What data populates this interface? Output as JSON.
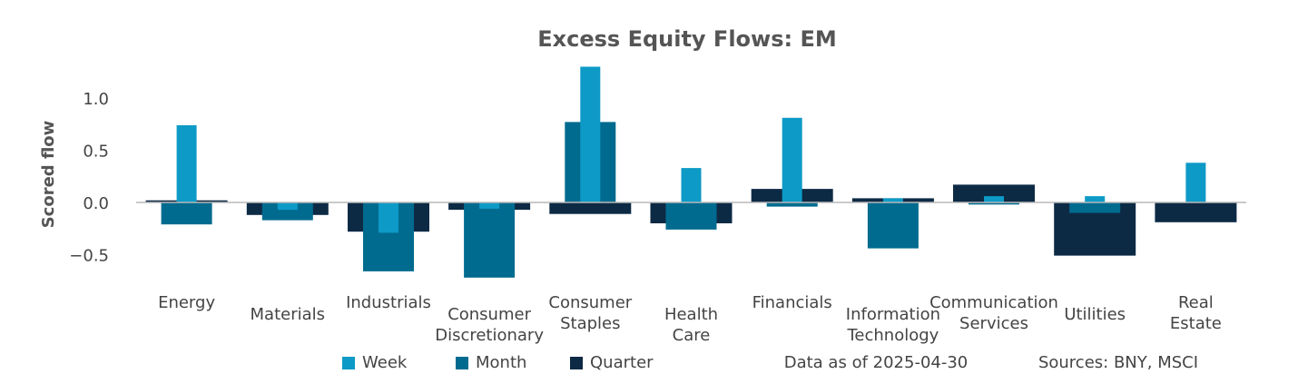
{
  "chart_data": {
    "type": "bar",
    "title": "Excess Equity Flows:  EM",
    "xlabel": "",
    "ylabel": "Scored flow",
    "ylim": [
      -0.75,
      1.4
    ],
    "yticks": [
      1.0,
      0.5,
      0.0,
      -0.5
    ],
    "ytick_labels": [
      "1.0",
      "0.5",
      "0.0",
      "−0.5"
    ],
    "categories": [
      [
        "Energy"
      ],
      [
        "Materials"
      ],
      [
        "Industrials"
      ],
      [
        "Consumer",
        "Discretionary"
      ],
      [
        "Consumer",
        "Staples"
      ],
      [
        "Health",
        "Care"
      ],
      [
        "Financials"
      ],
      [
        "Information",
        "Technology"
      ],
      [
        "Communication",
        "Services"
      ],
      [
        "Utilities"
      ],
      [
        "Real",
        "Estate"
      ]
    ],
    "series": [
      {
        "name": "Quarter",
        "color": "#0d2a45",
        "values": [
          0.02,
          -0.12,
          -0.28,
          -0.07,
          -0.11,
          -0.2,
          0.13,
          0.04,
          0.17,
          -0.51,
          -0.19
        ]
      },
      {
        "name": "Month",
        "color": "#006b8f",
        "values": [
          -0.21,
          -0.17,
          -0.66,
          -0.72,
          0.77,
          -0.26,
          -0.04,
          -0.44,
          -0.02,
          -0.1,
          0.0
        ]
      },
      {
        "name": "Week",
        "color": "#0d9ac7",
        "values": [
          0.74,
          -0.07,
          -0.29,
          -0.06,
          1.3,
          0.33,
          0.81,
          0.04,
          0.06,
          0.06,
          0.38
        ]
      }
    ],
    "legend": [
      "Week",
      "Month",
      "Quarter"
    ],
    "legend_position": "bottom",
    "grid": false
  },
  "notes": {
    "data_date": "Data as of 2025-04-30",
    "sources": "Sources:  BNY, MSCI"
  }
}
